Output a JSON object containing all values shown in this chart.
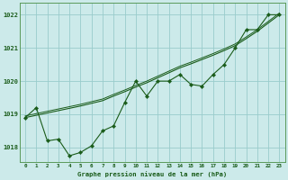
{
  "title": "Graphe pression niveau de la mer (hPa)",
  "background_color": "#cceaea",
  "grid_color": "#99cccc",
  "line_color": "#1a5c1a",
  "x_ticks": [
    0,
    1,
    2,
    3,
    4,
    5,
    6,
    7,
    8,
    9,
    10,
    11,
    12,
    13,
    14,
    15,
    16,
    17,
    18,
    19,
    20,
    21,
    22,
    23
  ],
  "y_ticks": [
    1018,
    1019,
    1020,
    1021,
    1022
  ],
  "ylim": [
    1017.55,
    1022.35
  ],
  "xlim": [
    -0.5,
    23.5
  ],
  "series_jagged": [
    1018.9,
    1019.2,
    1018.2,
    1018.25,
    1017.75,
    1017.85,
    1018.05,
    1018.5,
    1018.65,
    1019.35,
    1020.0,
    1019.55,
    1020.0,
    1020.0,
    1020.2,
    1019.9,
    1019.85,
    1020.2,
    1020.5,
    1021.0,
    1021.55,
    1021.55,
    1022.0,
    1022.0
  ],
  "series_smooth1": [
    1018.9,
    1018.97,
    1019.04,
    1019.11,
    1019.18,
    1019.25,
    1019.33,
    1019.41,
    1019.55,
    1019.68,
    1019.82,
    1019.95,
    1020.1,
    1020.25,
    1020.4,
    1020.52,
    1020.65,
    1020.78,
    1020.92,
    1021.07,
    1021.28,
    1021.5,
    1021.75,
    1022.0
  ],
  "title_color": "#1a5c1a",
  "tick_color": "#1a5c1a",
  "spine_color": "#5a9a5a"
}
